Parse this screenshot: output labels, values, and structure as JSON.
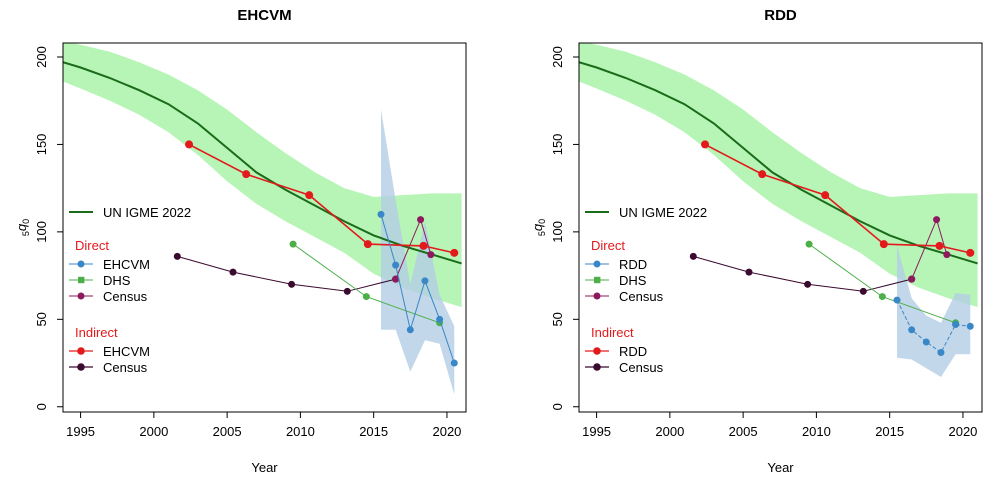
{
  "colors": {
    "igme_line": "#1a6b1a",
    "igme_band": "#b7f5b7",
    "direct_survey": "#3a87c8",
    "direct_survey_band": "#b3cde3",
    "dhs": "#4daf4a",
    "census_direct": "#8e1a5e",
    "indirect_survey": "#e31a1c",
    "indirect_census": "#3b0a2f"
  },
  "chart_data": [
    {
      "type": "line",
      "title": "EHCVM",
      "xlabel": "Year",
      "ylabel_main": "q",
      "ylabel_pre": "5",
      "ylabel_sub": "0",
      "xlim": [
        1993.8,
        2021.3
      ],
      "ylim": [
        -3,
        208
      ],
      "x_ticks": [
        "1995",
        "2000",
        "2005",
        "2010",
        "2015",
        "2020"
      ],
      "y_ticks": [
        "0",
        "50",
        "100",
        "150",
        "200"
      ],
      "grid": false,
      "igme": {
        "name": "UN IGME 2022",
        "x": [
          1993.8,
          1995,
          1997,
          1999,
          2001,
          2003,
          2005,
          2007,
          2009,
          2011,
          2013,
          2015,
          2017,
          2019,
          2021
        ],
        "y": [
          197,
          194,
          188,
          181,
          173,
          162,
          148,
          134,
          124,
          115,
          106,
          98,
          92,
          87,
          82
        ],
        "lower": [
          186,
          182,
          175,
          167,
          157,
          144,
          129,
          116,
          106,
          97,
          88,
          76,
          68,
          62,
          57
        ],
        "upper": [
          209,
          207,
          203,
          197,
          190,
          181,
          170,
          157,
          145,
          134,
          125,
          120,
          121,
          122,
          122
        ]
      },
      "direct_heading": "Direct",
      "indirect_heading": "Indirect",
      "legend_igme": "UN IGME 2022",
      "legend_direct": [
        "EHCVM",
        "DHS",
        "Census"
      ],
      "legend_indirect": [
        "EHCVM",
        "Census"
      ],
      "direct_survey": {
        "x": [
          2015.5,
          2016.5,
          2017.5,
          2018.5,
          2019.5,
          2020.5
        ],
        "y": [
          110,
          81,
          44,
          72,
          50,
          25
        ],
        "band_x": [
          2015.5,
          2016.5,
          2017.5,
          2018.5,
          2019.5,
          2020.5
        ],
        "band_lower": [
          44,
          44,
          20,
          38,
          36,
          7
        ],
        "band_upper": [
          170,
          118,
          70,
          106,
          64,
          46
        ]
      },
      "dhs": {
        "x": [
          2009.5,
          2014.5,
          2019.5
        ],
        "y": [
          93,
          63,
          48
        ]
      },
      "census_direct": {
        "x": [
          2016.5,
          2018.2,
          2018.9
        ],
        "y": [
          73,
          107,
          87
        ]
      },
      "indirect_survey": {
        "x": [
          2002.4,
          2006.3,
          2010.6,
          2014.6,
          2018.4,
          2020.5
        ],
        "y": [
          150,
          133,
          121,
          93,
          92,
          88
        ]
      },
      "indirect_census": {
        "x": [
          2001.6,
          2005.4,
          2009.4,
          2013.2,
          2016.5
        ],
        "y": [
          86,
          77,
          70,
          66,
          73
        ]
      }
    },
    {
      "type": "line",
      "title": "RDD",
      "xlabel": "Year",
      "ylabel_main": "q",
      "ylabel_pre": "5",
      "ylabel_sub": "0",
      "xlim": [
        1993.8,
        2021.3
      ],
      "ylim": [
        -3,
        208
      ],
      "x_ticks": [
        "1995",
        "2000",
        "2005",
        "2010",
        "2015",
        "2020"
      ],
      "y_ticks": [
        "0",
        "50",
        "100",
        "150",
        "200"
      ],
      "grid": false,
      "igme": {
        "name": "UN IGME 2022",
        "x": [
          1993.8,
          1995,
          1997,
          1999,
          2001,
          2003,
          2005,
          2007,
          2009,
          2011,
          2013,
          2015,
          2017,
          2019,
          2021
        ],
        "y": [
          197,
          194,
          188,
          181,
          173,
          162,
          148,
          134,
          124,
          115,
          106,
          98,
          92,
          87,
          82
        ],
        "lower": [
          186,
          182,
          175,
          167,
          157,
          144,
          129,
          116,
          106,
          97,
          88,
          76,
          68,
          62,
          57
        ],
        "upper": [
          209,
          207,
          203,
          197,
          190,
          181,
          170,
          157,
          145,
          134,
          125,
          120,
          121,
          122,
          122
        ]
      },
      "direct_heading": "Direct",
      "indirect_heading": "Indirect",
      "legend_igme": "UN IGME 2022",
      "legend_direct": [
        "RDD",
        "DHS",
        "Census"
      ],
      "legend_indirect": [
        "RDD",
        "Census"
      ],
      "direct_survey": {
        "x": [
          2015.5,
          2016.5,
          2017.5,
          2018.5,
          2019.5,
          2020.5
        ],
        "y": [
          61,
          44,
          37,
          31,
          47,
          46
        ],
        "band_x": [
          2015.5,
          2016.5,
          2017.5,
          2018.5,
          2019.5,
          2020.5
        ],
        "band_lower": [
          28,
          27,
          22,
          17,
          30,
          30
        ],
        "band_upper": [
          92,
          62,
          52,
          48,
          65,
          64
        ]
      },
      "dhs": {
        "x": [
          2009.5,
          2014.5,
          2019.5
        ],
        "y": [
          93,
          63,
          48
        ]
      },
      "census_direct": {
        "x": [
          2016.5,
          2018.2,
          2018.9
        ],
        "y": [
          73,
          107,
          87
        ]
      },
      "indirect_survey": {
        "x": [
          2002.4,
          2006.3,
          2010.6,
          2014.6,
          2018.4,
          2020.5
        ],
        "y": [
          150,
          133,
          121,
          93,
          92,
          88
        ]
      },
      "indirect_census": {
        "x": [
          2001.6,
          2005.4,
          2009.4,
          2013.2,
          2016.5
        ],
        "y": [
          86,
          77,
          70,
          66,
          73
        ]
      }
    }
  ]
}
